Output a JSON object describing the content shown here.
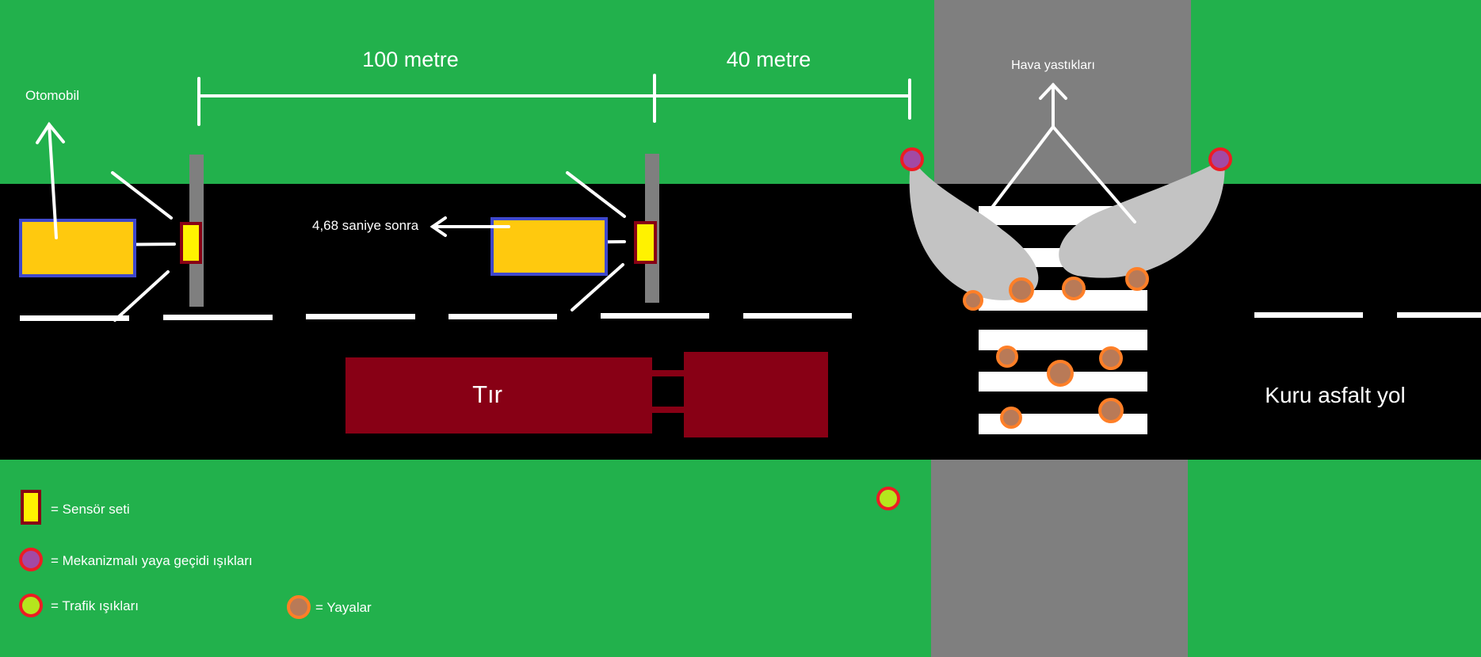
{
  "distances": {
    "first": "100 metre",
    "second": "40 metre"
  },
  "labels": {
    "car": "Otomobil",
    "airbags": "Hava yastıkları",
    "delay": "4,68 saniye sonra",
    "truck": "Tır",
    "road": "Kuru asfalt yol"
  },
  "legend": [
    {
      "icon": "sensor-set-icon",
      "label": "= Sensör seti"
    },
    {
      "icon": "crossing-light-icon",
      "label": "= Mekanizmalı yaya geçidi ışıkları"
    },
    {
      "icon": "traffic-light-icon",
      "label": "= Trafik ışıkları"
    },
    {
      "icon": "pedestrian-icon",
      "label": "= Yayalar"
    }
  ],
  "colors": {
    "grass": "#22b14c",
    "road": "#000000",
    "sidewalk": "#7f7f7f",
    "car_fill": "#ffc90e",
    "car_border": "#3f48cc",
    "sensor_fill": "#fff200",
    "sensor_border": "#880015",
    "truck": "#880015",
    "airbag": "#c3c3c3",
    "crossing_light_center": "#a349a4",
    "light_ring": "#ed1c24",
    "traffic_light_center": "#b5e61d",
    "pedestrian_ring": "#ff7f27",
    "pedestrian_center": "#b97a57"
  }
}
